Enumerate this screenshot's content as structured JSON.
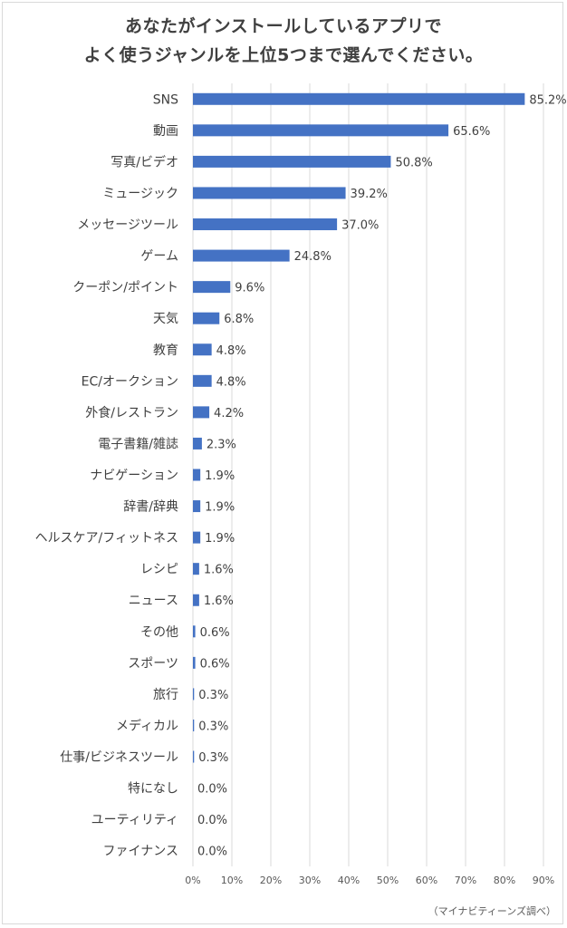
{
  "title": {
    "line1": "あなたがインストールしているアプリで",
    "line2": "よく使うジャンルを上位5つまで選んでください。"
  },
  "credit": "（マイナビティーンズ調べ）",
  "colors": {
    "bar": "#4472c4",
    "grid": "#d9d9d9",
    "text": "#404040"
  },
  "chart_data": {
    "type": "bar",
    "orientation": "horizontal",
    "categories": [
      "SNS",
      "動画",
      "写真/ビデオ",
      "ミュージック",
      "メッセージツール",
      "ゲーム",
      "クーポン/ポイント",
      "天気",
      "教育",
      "EC/オークション",
      "外食/レストラン",
      "電子書籍/雑誌",
      "ナビゲーション",
      "辞書/辞典",
      "ヘルスケア/フィットネス",
      "レシピ",
      "ニュース",
      "その他",
      "スポーツ",
      "旅行",
      "メディカル",
      "仕事/ビジネスツール",
      "特になし",
      "ユーティリティ",
      "ファイナンス"
    ],
    "values": [
      85.2,
      65.6,
      50.8,
      39.2,
      37.0,
      24.8,
      9.6,
      6.8,
      4.8,
      4.8,
      4.2,
      2.3,
      1.9,
      1.9,
      1.9,
      1.6,
      1.6,
      0.6,
      0.6,
      0.3,
      0.3,
      0.3,
      0.0,
      0.0,
      0.0
    ],
    "value_labels": [
      "85.2%",
      "65.6%",
      "50.8%",
      "39.2%",
      "37.0%",
      "24.8%",
      "9.6%",
      "6.8%",
      "4.8%",
      "4.8%",
      "4.2%",
      "2.3%",
      "1.9%",
      "1.9%",
      "1.9%",
      "1.6%",
      "1.6%",
      "0.6%",
      "0.6%",
      "0.3%",
      "0.3%",
      "0.3%",
      "0.0%",
      "0.0%",
      "0.0%"
    ],
    "xlim": [
      0,
      90
    ],
    "xticks": [
      0,
      10,
      20,
      30,
      40,
      50,
      60,
      70,
      80,
      90
    ],
    "xtick_labels": [
      "0%",
      "10%",
      "20%",
      "30%",
      "40%",
      "50%",
      "60%",
      "70%",
      "80%",
      "90%"
    ],
    "grid": true,
    "legend": "none"
  }
}
